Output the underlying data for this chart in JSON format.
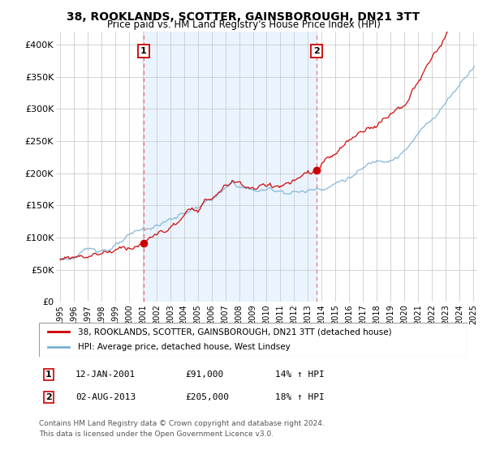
{
  "title": "38, ROOKLANDS, SCOTTER, GAINSBOROUGH, DN21 3TT",
  "subtitle": "Price paid vs. HM Land Registry's House Price Index (HPI)",
  "ylim": [
    0,
    420000
  ],
  "yticks": [
    0,
    50000,
    100000,
    150000,
    200000,
    250000,
    300000,
    350000,
    400000
  ],
  "ytick_labels": [
    "£0",
    "£50K",
    "£100K",
    "£150K",
    "£200K",
    "£250K",
    "£300K",
    "£350K",
    "£400K"
  ],
  "sale1_date": "12-JAN-2001",
  "sale1_price": 91000,
  "sale1_hpi": "14% ↑ HPI",
  "sale1_x": 2001.04,
  "sale2_date": "02-AUG-2013",
  "sale2_price": 205000,
  "sale2_hpi": "18% ↑ HPI",
  "sale2_x": 2013.6,
  "legend_label1": "38, ROOKLANDS, SCOTTER, GAINSBOROUGH, DN21 3TT (detached house)",
  "legend_label2": "HPI: Average price, detached house, West Lindsey",
  "footnote1": "Contains HM Land Registry data © Crown copyright and database right 2024.",
  "footnote2": "This data is licensed under the Open Government Licence v3.0.",
  "red_color": "#cc0000",
  "blue_color": "#7ab0d4",
  "shade_color": "#ddeeff",
  "dashed_color": "#e87878",
  "background_color": "#ffffff",
  "grid_color": "#cccccc"
}
